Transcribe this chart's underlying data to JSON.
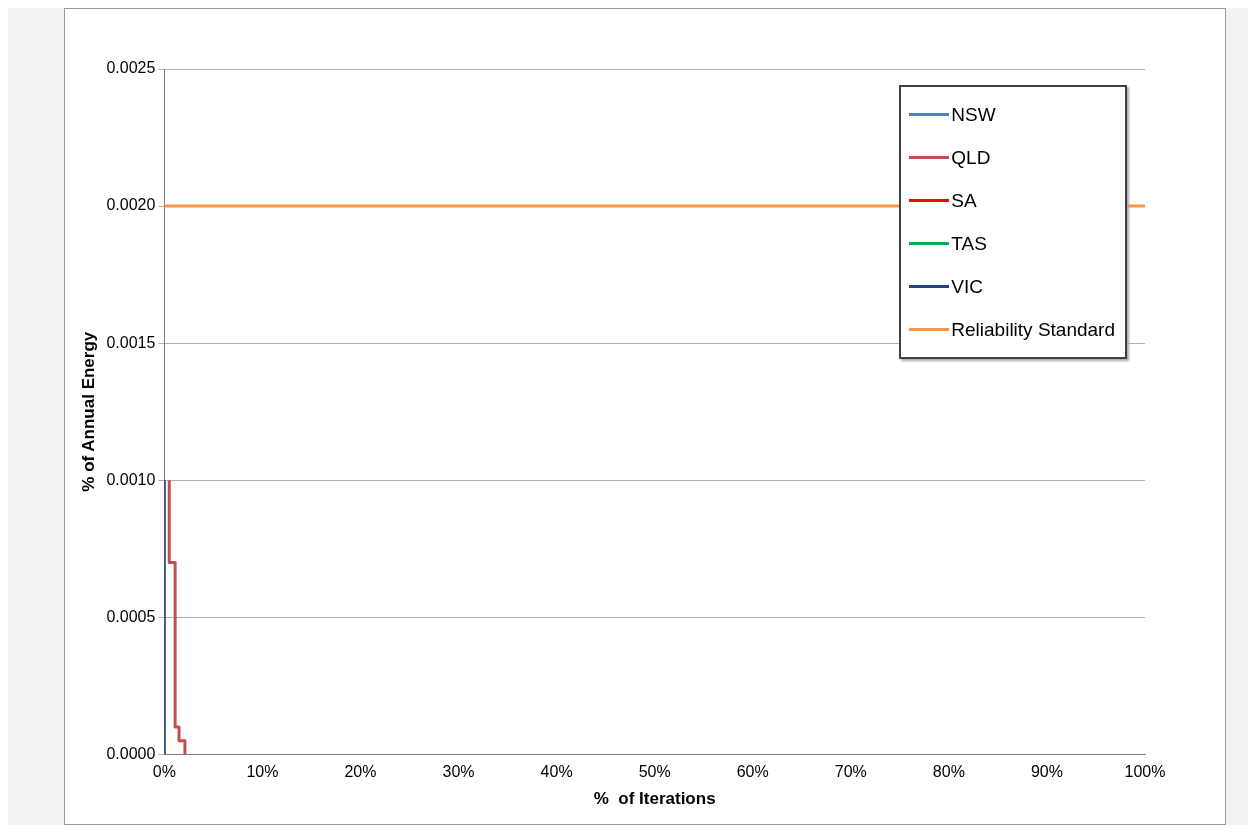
{
  "chart_data": {
    "type": "step",
    "xlabel": "%  of Iterations",
    "ylabel": "% of Annual Energy",
    "xlim": [
      0,
      100
    ],
    "xticks": [
      {
        "value": 0,
        "label": "0%"
      },
      {
        "value": 10,
        "label": "10%"
      },
      {
        "value": 20,
        "label": "20%"
      },
      {
        "value": 30,
        "label": "30%"
      },
      {
        "value": 40,
        "label": "40%"
      },
      {
        "value": 50,
        "label": "50%"
      },
      {
        "value": 60,
        "label": "60%"
      },
      {
        "value": 70,
        "label": "70%"
      },
      {
        "value": 80,
        "label": "80%"
      },
      {
        "value": 90,
        "label": "90%"
      },
      {
        "value": 100,
        "label": "100%"
      }
    ],
    "ylim": [
      0,
      0.0025
    ],
    "yticks": [
      {
        "value": 0,
        "label": "0.0000"
      },
      {
        "value": 0.0005,
        "label": "0.0005"
      },
      {
        "value": 0.001,
        "label": "0.0010"
      },
      {
        "value": 0.0015,
        "label": "0.0015"
      },
      {
        "value": 0.002,
        "label": "0.0020"
      },
      {
        "value": 0.0025,
        "label": "0.0025"
      }
    ],
    "grid": "y",
    "legend": "top right",
    "marker": "none",
    "series": [
      {
        "name": "NSW",
        "color": "#4f81bd"
      },
      {
        "name": "QLD",
        "color": "#c0504d",
        "x": [
          0.5,
          0.5,
          1.1,
          1.5,
          2.1
        ],
        "values": [
          0.001,
          0.0007,
          0.0001,
          5e-05,
          0
        ]
      },
      {
        "name": "SA",
        "color": "#ff0000"
      },
      {
        "name": "TAS",
        "color": "#00b050"
      },
      {
        "name": "VIC",
        "color": "#1f497d",
        "x": [
          0,
          0
        ],
        "values": [
          0.001,
          0
        ]
      },
      {
        "name": "Reliability Standard",
        "color": "#f79646",
        "type": "line",
        "x": [
          0,
          100
        ],
        "values": [
          0.002,
          0.002
        ]
      }
    ]
  }
}
